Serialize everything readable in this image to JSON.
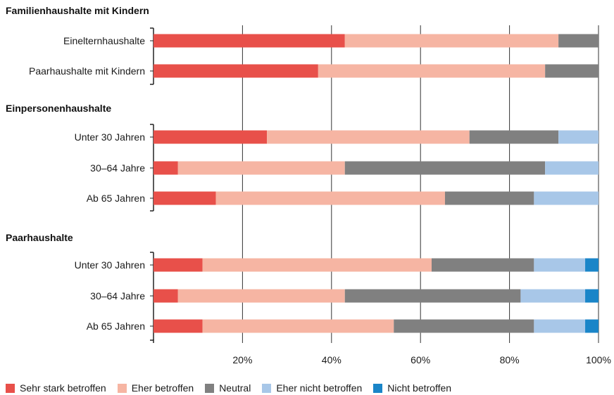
{
  "chart_data": {
    "type": "bar",
    "orientation": "horizontal",
    "stacked": true,
    "xlim": [
      0,
      100
    ],
    "x_ticks": [
      "20%",
      "40%",
      "60%",
      "80%",
      "100%"
    ],
    "x_tick_values": [
      20,
      40,
      60,
      80,
      100
    ],
    "grid": true,
    "legend_position": "bottom",
    "series": [
      {
        "name": "Sehr stark betroffen",
        "color": "#e8504a"
      },
      {
        "name": "Eher betroffen",
        "color": "#f6b5a3"
      },
      {
        "name": "Neutral",
        "color": "#808080"
      },
      {
        "name": "Eher nicht betroffen",
        "color": "#a8c7e8"
      },
      {
        "name": "Nicht betroffen",
        "color": "#1a85c8"
      }
    ],
    "groups": [
      {
        "title": "Familienhaushalte mit Kindern",
        "rows": [
          {
            "label": "Einelternhaushalte",
            "values": [
              43,
              48,
              9,
              0,
              0
            ]
          },
          {
            "label": "Paarhaushalte mit Kindern",
            "values": [
              37,
              51,
              12,
              0,
              0
            ]
          }
        ]
      },
      {
        "title": "Einpersonenhaushalte",
        "rows": [
          {
            "label": "Unter 30 Jahren",
            "values": [
              25.5,
              45.5,
              20,
              9,
              0
            ]
          },
          {
            "label": "30–64 Jahre",
            "values": [
              5.5,
              37.5,
              45,
              12,
              0
            ]
          },
          {
            "label": "Ab 65 Jahren",
            "values": [
              14,
              51.5,
              20,
              14.5,
              0
            ]
          }
        ]
      },
      {
        "title": "Paarhaushalte",
        "rows": [
          {
            "label": "Unter 30 Jahren",
            "values": [
              11,
              51.5,
              23,
              11.5,
              3
            ]
          },
          {
            "label": "30–64 Jahre",
            "values": [
              5.5,
              37.5,
              39.5,
              14.5,
              3
            ]
          },
          {
            "label": "Ab 65 Jahren",
            "values": [
              11,
              43,
              31.5,
              11.5,
              3
            ]
          }
        ]
      }
    ]
  }
}
